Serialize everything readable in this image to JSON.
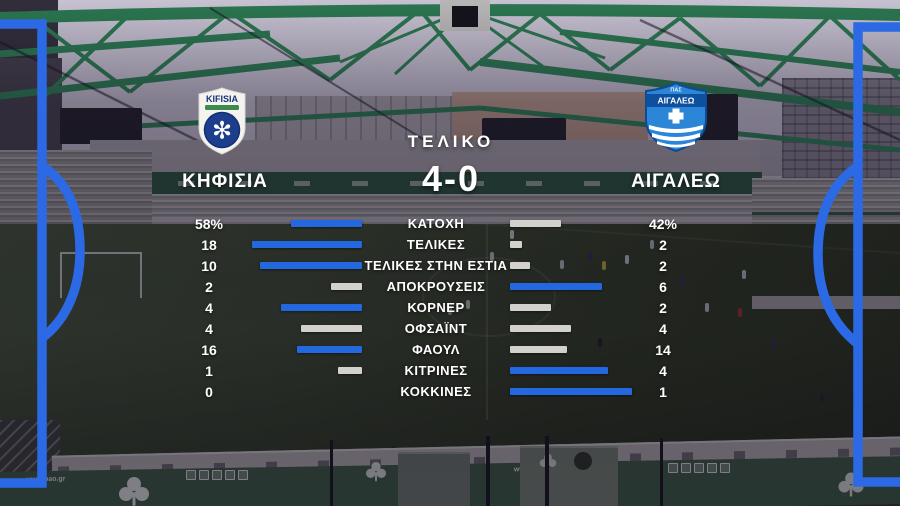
{
  "broadcast": {
    "status_label": "ΤΕΛΙΚΟ",
    "score": "4-0",
    "teams": {
      "home": {
        "name": "ΚΗΦΙΣΙΑ",
        "logo_text": "KIFISIA"
      },
      "away": {
        "name": "ΑΙΓΑΛΕΩ",
        "logo_text": "ΑΙΓΑΛΕΩ",
        "logo_top_text": "ΠΑΣ"
      }
    },
    "colors": {
      "bar_leading": "#2368de",
      "bar_trailing": "#d2d1cc",
      "frame_blue": "#2b6ae4"
    },
    "stats": [
      {
        "label": "ΚΑΤΟΧΗ",
        "home": "58%",
        "away": "42%",
        "home_value": 58,
        "away_value": 42
      },
      {
        "label": "ΤΕΛΙΚΕΣ",
        "home": "18",
        "away": "2",
        "home_value": 18,
        "away_value": 2
      },
      {
        "label": "ΤΕΛΙΚΕΣ ΣΤΗΝ ΕΣΤΙΑ",
        "home": "10",
        "away": "2",
        "home_value": 10,
        "away_value": 2
      },
      {
        "label": "ΑΠΟΚΡΟΥΣΕΙΣ",
        "home": "2",
        "away": "6",
        "home_value": 2,
        "away_value": 6
      },
      {
        "label": "ΚΟΡΝΕΡ",
        "home": "4",
        "away": "2",
        "home_value": 4,
        "away_value": 2
      },
      {
        "label": "ΟΦΣΑΪΝΤ",
        "home": "4",
        "away": "4",
        "home_value": 4,
        "away_value": 4
      },
      {
        "label": "ΦΑΟΥΛ",
        "home": "16",
        "away": "14",
        "home_value": 16,
        "away_value": 14
      },
      {
        "label": "ΚΙΤΡΙΝΕΣ",
        "home": "1",
        "away": "4",
        "home_value": 1,
        "away_value": 4
      },
      {
        "label": "ΚΟΚΚΙΝΕΣ",
        "home": "0",
        "away": "1",
        "home_value": 0,
        "away_value": 1
      }
    ]
  },
  "background": {
    "pitch_url_text": "www.pao.gr"
  },
  "chart_data": {
    "type": "bar",
    "title": "ΤΕΛΙΚΟ 4-0",
    "orientation": "horizontal-paired",
    "categories": [
      "ΚΑΤΟΧΗ",
      "ΤΕΛΙΚΕΣ",
      "ΤΕΛΙΚΕΣ ΣΤΗΝ ΕΣΤΙΑ",
      "ΑΠΟΚΡΟΥΣΕΙΣ",
      "ΚΟΡΝΕΡ",
      "ΟΦΣΑΪΝΤ",
      "ΦΑΟΥΛ",
      "ΚΙΤΡΙΝΕΣ",
      "ΚΟΚΚΙΝΕΣ"
    ],
    "series": [
      {
        "name": "ΚΗΦΙΣΙΑ",
        "values": [
          58,
          18,
          10,
          2,
          4,
          4,
          16,
          1,
          0
        ]
      },
      {
        "name": "ΑΙΓΑΛΕΩ",
        "values": [
          42,
          2,
          2,
          6,
          2,
          4,
          14,
          4,
          1
        ]
      }
    ],
    "value_suffix_first_row": "%",
    "bar_rule": "bar width proportional to value/(home+away); leading value blue, trailing/equal gray"
  }
}
